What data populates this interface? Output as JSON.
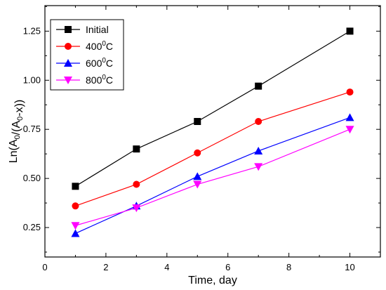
{
  "chart_data": {
    "type": "line",
    "xlabel": "Time, day",
    "ylabel": "Ln(A0/(A0-x))",
    "xlim": [
      0,
      11
    ],
    "ylim": [
      0.1,
      1.38
    ],
    "xticks": [
      0,
      2,
      4,
      6,
      8,
      10
    ],
    "xtick_labels": [
      "0",
      "2",
      "4",
      "6",
      "8",
      "10"
    ],
    "yticks": [
      0.25,
      0.5,
      0.75,
      1.0,
      1.25
    ],
    "ytick_labels": [
      "0.25",
      "0.50",
      "0.75",
      "1.00",
      "1.25"
    ],
    "legend_position": "top-left",
    "grid": false,
    "series": [
      {
        "name": "Initial",
        "color": "#000000",
        "marker": "square",
        "x": [
          1,
          3,
          5,
          7,
          10
        ],
        "y": [
          0.46,
          0.65,
          0.79,
          0.97,
          1.25
        ]
      },
      {
        "name": "400°C",
        "color": "#ff0000",
        "marker": "circle",
        "x": [
          1,
          3,
          5,
          7,
          10
        ],
        "y": [
          0.36,
          0.47,
          0.63,
          0.79,
          0.94
        ]
      },
      {
        "name": "600°C",
        "color": "#0000ff",
        "marker": "triangle-up",
        "x": [
          1,
          3,
          5,
          7,
          10
        ],
        "y": [
          0.22,
          0.36,
          0.51,
          0.64,
          0.81
        ]
      },
      {
        "name": "800°C",
        "color": "#ff00ff",
        "marker": "triangle-down",
        "x": [
          1,
          3,
          5,
          7,
          10
        ],
        "y": [
          0.26,
          0.35,
          0.47,
          0.56,
          0.75
        ]
      }
    ]
  }
}
